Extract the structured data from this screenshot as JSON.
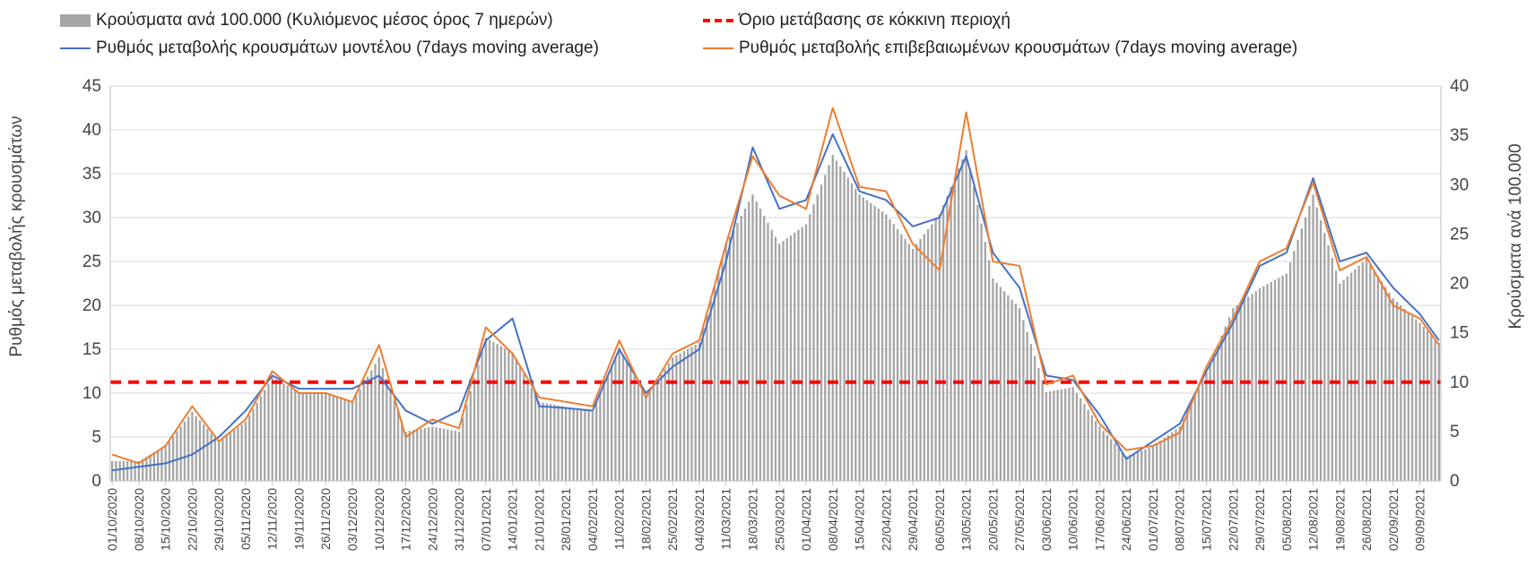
{
  "chart_data": {
    "type": "bar+line",
    "legend": {
      "bars": "Κρούσματα ανά 100.000 (Κυλιόμενος μέσος όρος 7 ημερών)",
      "threshold": "Όριο μετάβασης σε κόκκινη περιοχή",
      "model": "Ρυθμός μεταβολής κρουσμάτων μοντέλου (7days moving average)",
      "confirmed": "Ρυθμός μεταβολής επιβεβαιωμένων κρουσμάτων (7days moving average)"
    },
    "ylabel_left": "Ρυθμός μεταβολής κρουσμάτων",
    "ylabel_right": "Κρούσματα ανά 100.000",
    "ylim_left": [
      0,
      45
    ],
    "ylim_right": [
      0,
      40
    ],
    "yticks_left": [
      0,
      5,
      10,
      15,
      20,
      25,
      30,
      35,
      40,
      45
    ],
    "yticks_right": [
      0,
      5,
      10,
      15,
      20,
      25,
      30,
      35,
      40
    ],
    "grid": "horizontal",
    "legend_position": "top",
    "x_start": "01/10/2020",
    "x_end": "14/09/2021",
    "x_tick_labels": [
      "01/10/2020",
      "08/10/2020",
      "15/10/2020",
      "22/10/2020",
      "29/10/2020",
      "05/11/2020",
      "12/11/2020",
      "19/11/2020",
      "26/11/2020",
      "03/12/2020",
      "10/12/2020",
      "17/12/2020",
      "24/12/2020",
      "31/12/2020",
      "07/01/2021",
      "14/01/2021",
      "21/01/2021",
      "28/01/2021",
      "04/02/2021",
      "11/02/2021",
      "18/02/2021",
      "25/02/2021",
      "04/03/2021",
      "11/03/2021",
      "18/03/2021",
      "25/03/2021",
      "01/04/2021",
      "08/04/2021",
      "15/04/2021",
      "22/04/2021",
      "29/04/2021",
      "06/05/2021",
      "13/05/2021",
      "20/05/2021",
      "27/05/2021",
      "03/06/2021",
      "10/06/2021",
      "17/06/2021",
      "24/06/2021",
      "01/07/2021",
      "08/07/2021",
      "15/07/2021",
      "22/07/2021",
      "29/07/2021",
      "05/08/2021",
      "12/08/2021",
      "19/08/2021",
      "26/08/2021",
      "02/09/2021",
      "09/09/2021"
    ],
    "threshold_value_right_axis": 10,
    "colors": {
      "bars": "#a6a6a6",
      "threshold": "#ff0000",
      "model": "#4472c4",
      "confirmed": "#ed7d31",
      "grid": "#d9d9d9"
    },
    "series": [
      {
        "name": "Κρούσματα ανά 100.000 (Κυλιόμενος μέσος όρος 7 ημερών)",
        "axis": "right",
        "kind": "bar",
        "points": [
          [
            "01/10/2020",
            2.0
          ],
          [
            "08/10/2020",
            2.0
          ],
          [
            "15/10/2020",
            3.5
          ],
          [
            "22/10/2020",
            7.0
          ],
          [
            "29/10/2020",
            4.0
          ],
          [
            "05/11/2020",
            6.0
          ],
          [
            "12/11/2020",
            10.5
          ],
          [
            "19/11/2020",
            9.0
          ],
          [
            "26/11/2020",
            9.0
          ],
          [
            "03/12/2020",
            8.0
          ],
          [
            "10/12/2020",
            12.5
          ],
          [
            "17/12/2020",
            5.0
          ],
          [
            "24/12/2020",
            5.5
          ],
          [
            "31/12/2020",
            5.0
          ],
          [
            "07/01/2021",
            14.5
          ],
          [
            "14/01/2021",
            13.0
          ],
          [
            "21/01/2021",
            8.0
          ],
          [
            "28/01/2021",
            7.5
          ],
          [
            "04/02/2021",
            7.0
          ],
          [
            "11/02/2021",
            13.5
          ],
          [
            "18/02/2021",
            8.5
          ],
          [
            "25/02/2021",
            12.5
          ],
          [
            "04/03/2021",
            14.0
          ],
          [
            "11/03/2021",
            24.0
          ],
          [
            "18/03/2021",
            29.0
          ],
          [
            "25/03/2021",
            24.0
          ],
          [
            "01/04/2021",
            26.0
          ],
          [
            "08/04/2021",
            33.0
          ],
          [
            "15/04/2021",
            29.0
          ],
          [
            "22/04/2021",
            27.0
          ],
          [
            "29/04/2021",
            23.5
          ],
          [
            "06/05/2021",
            27.0
          ],
          [
            "13/05/2021",
            33.5
          ],
          [
            "20/05/2021",
            20.5
          ],
          [
            "27/05/2021",
            17.5
          ],
          [
            "03/06/2021",
            9.0
          ],
          [
            "10/06/2021",
            9.5
          ],
          [
            "17/06/2021",
            5.5
          ],
          [
            "24/06/2021",
            2.5
          ],
          [
            "01/07/2021",
            3.5
          ],
          [
            "08/07/2021",
            5.5
          ],
          [
            "15/07/2021",
            11.0
          ],
          [
            "22/07/2021",
            17.5
          ],
          [
            "29/07/2021",
            19.5
          ],
          [
            "05/08/2021",
            21.0
          ],
          [
            "12/08/2021",
            29.0
          ],
          [
            "19/08/2021",
            20.0
          ],
          [
            "26/08/2021",
            22.5
          ],
          [
            "02/09/2021",
            18.5
          ],
          [
            "09/09/2021",
            16.0
          ],
          [
            "14/09/2021",
            14.0
          ]
        ]
      },
      {
        "name": "Ρυθμός μεταβολής κρουσμάτων μοντέλου (7days moving average)",
        "axis": "left",
        "kind": "line",
        "points": [
          [
            "01/10/2020",
            1.2
          ],
          [
            "08/10/2020",
            1.6
          ],
          [
            "15/10/2020",
            2.0
          ],
          [
            "22/10/2020",
            3.0
          ],
          [
            "29/10/2020",
            5.0
          ],
          [
            "05/11/2020",
            8.0
          ],
          [
            "12/11/2020",
            12.0
          ],
          [
            "19/11/2020",
            10.5
          ],
          [
            "26/11/2020",
            10.5
          ],
          [
            "03/12/2020",
            10.5
          ],
          [
            "10/12/2020",
            12.0
          ],
          [
            "17/12/2020",
            8.0
          ],
          [
            "24/12/2020",
            6.5
          ],
          [
            "31/12/2020",
            8.0
          ],
          [
            "07/01/2021",
            16.0
          ],
          [
            "14/01/2021",
            18.5
          ],
          [
            "21/01/2021",
            8.5
          ],
          [
            "28/01/2021",
            8.3
          ],
          [
            "04/02/2021",
            8.0
          ],
          [
            "11/02/2021",
            15.0
          ],
          [
            "18/02/2021",
            10.0
          ],
          [
            "25/02/2021",
            13.0
          ],
          [
            "04/03/2021",
            15.0
          ],
          [
            "11/03/2021",
            25.0
          ],
          [
            "18/03/2021",
            38.0
          ],
          [
            "25/03/2021",
            31.0
          ],
          [
            "01/04/2021",
            32.0
          ],
          [
            "08/04/2021",
            39.5
          ],
          [
            "15/04/2021",
            33.0
          ],
          [
            "22/04/2021",
            32.0
          ],
          [
            "29/04/2021",
            29.0
          ],
          [
            "06/05/2021",
            30.0
          ],
          [
            "13/05/2021",
            37.0
          ],
          [
            "20/05/2021",
            26.0
          ],
          [
            "27/05/2021",
            22.0
          ],
          [
            "03/06/2021",
            12.0
          ],
          [
            "10/06/2021",
            11.5
          ],
          [
            "17/06/2021",
            7.5
          ],
          [
            "24/06/2021",
            2.5
          ],
          [
            "01/07/2021",
            4.5
          ],
          [
            "08/07/2021",
            6.5
          ],
          [
            "15/07/2021",
            12.5
          ],
          [
            "22/07/2021",
            18.0
          ],
          [
            "29/07/2021",
            24.5
          ],
          [
            "05/08/2021",
            26.0
          ],
          [
            "12/08/2021",
            34.5
          ],
          [
            "19/08/2021",
            25.0
          ],
          [
            "26/08/2021",
            26.0
          ],
          [
            "02/09/2021",
            22.0
          ],
          [
            "09/09/2021",
            19.0
          ],
          [
            "14/09/2021",
            16.0
          ]
        ]
      },
      {
        "name": "Ρυθμός μεταβολής επιβεβαιωμένων κρουσμάτων (7days moving average)",
        "axis": "left",
        "kind": "line",
        "points": [
          [
            "01/10/2020",
            3.0
          ],
          [
            "08/10/2020",
            2.0
          ],
          [
            "15/10/2020",
            4.0
          ],
          [
            "22/10/2020",
            8.5
          ],
          [
            "29/10/2020",
            4.5
          ],
          [
            "05/11/2020",
            7.0
          ],
          [
            "12/11/2020",
            12.5
          ],
          [
            "19/11/2020",
            10.0
          ],
          [
            "26/11/2020",
            10.0
          ],
          [
            "03/12/2020",
            9.0
          ],
          [
            "10/12/2020",
            15.5
          ],
          [
            "17/12/2020",
            5.0
          ],
          [
            "24/12/2020",
            7.0
          ],
          [
            "31/12/2020",
            6.0
          ],
          [
            "07/01/2021",
            17.5
          ],
          [
            "14/01/2021",
            14.5
          ],
          [
            "21/01/2021",
            9.5
          ],
          [
            "28/01/2021",
            9.0
          ],
          [
            "04/02/2021",
            8.5
          ],
          [
            "11/02/2021",
            16.0
          ],
          [
            "18/02/2021",
            9.5
          ],
          [
            "25/02/2021",
            14.5
          ],
          [
            "04/03/2021",
            16.0
          ],
          [
            "11/03/2021",
            27.0
          ],
          [
            "18/03/2021",
            37.0
          ],
          [
            "25/03/2021",
            32.5
          ],
          [
            "01/04/2021",
            31.0
          ],
          [
            "08/04/2021",
            42.5
          ],
          [
            "15/04/2021",
            33.5
          ],
          [
            "22/04/2021",
            33.0
          ],
          [
            "29/04/2021",
            27.0
          ],
          [
            "06/05/2021",
            24.0
          ],
          [
            "13/05/2021",
            42.0
          ],
          [
            "20/05/2021",
            25.0
          ],
          [
            "27/05/2021",
            24.5
          ],
          [
            "03/06/2021",
            11.0
          ],
          [
            "10/06/2021",
            12.0
          ],
          [
            "17/06/2021",
            6.5
          ],
          [
            "24/06/2021",
            3.5
          ],
          [
            "01/07/2021",
            4.0
          ],
          [
            "08/07/2021",
            5.5
          ],
          [
            "15/07/2021",
            13.0
          ],
          [
            "22/07/2021",
            18.5
          ],
          [
            "29/07/2021",
            25.0
          ],
          [
            "05/08/2021",
            26.5
          ],
          [
            "12/08/2021",
            34.0
          ],
          [
            "19/08/2021",
            24.0
          ],
          [
            "26/08/2021",
            25.5
          ],
          [
            "02/09/2021",
            20.0
          ],
          [
            "09/09/2021",
            18.5
          ],
          [
            "14/09/2021",
            15.5
          ]
        ]
      }
    ]
  }
}
